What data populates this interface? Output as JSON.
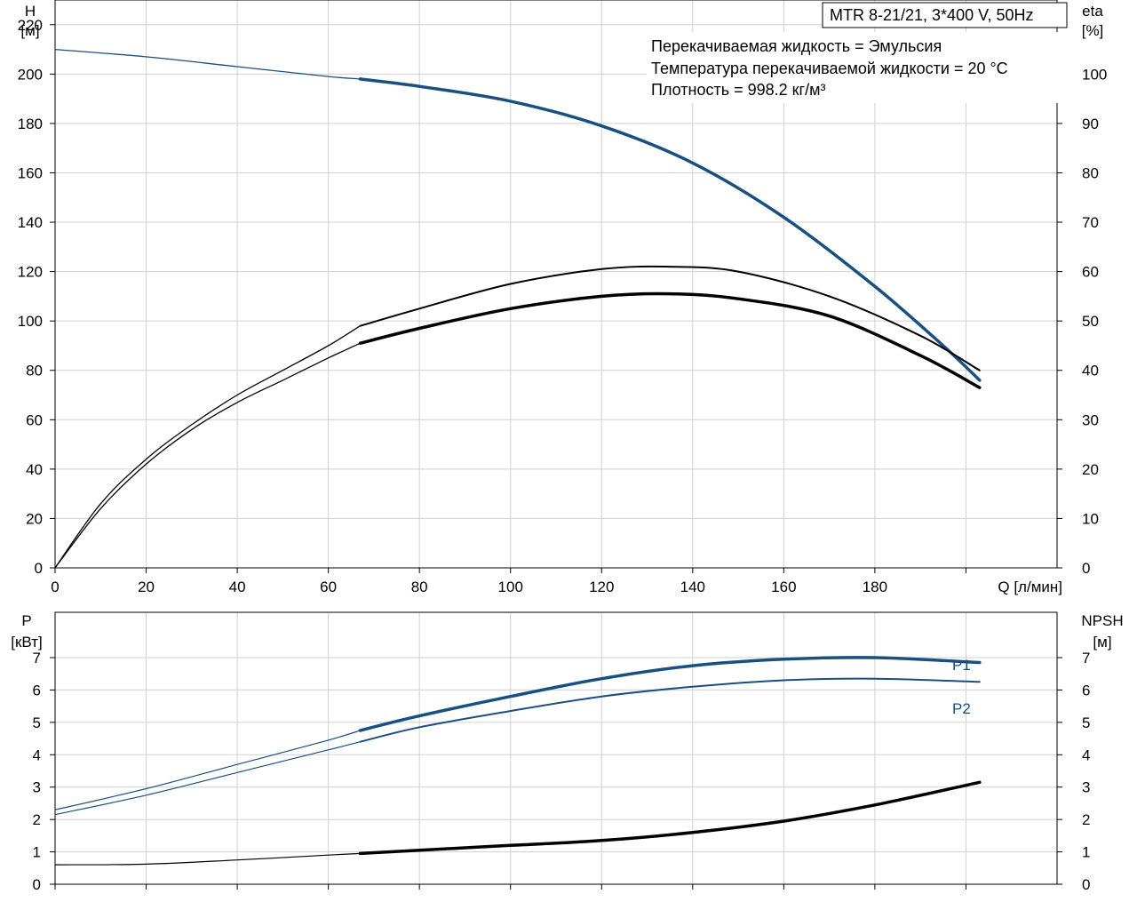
{
  "colors": {
    "head": "#1a4f82",
    "power": "#1a4f82",
    "efficiency": "#000000",
    "npsh": "#000000",
    "grid": "#d0d0d0"
  },
  "header": {
    "model": "MTR 8-21/21, 3*400 V, 50Hz",
    "liquid": "Перекачиваемая жидкость = Эмульсия",
    "temperature": "Температура перекачиваемой жидкости = 20 °C",
    "density": "Плотность = 998.2 кг/м³"
  },
  "chart_data": [
    {
      "type": "line",
      "x_axis": {
        "label": "Q [л/мин]",
        "range": [
          0,
          220
        ],
        "ticks": [
          0,
          20,
          40,
          60,
          80,
          100,
          120,
          140,
          160,
          180
        ]
      },
      "y_axis_left": {
        "label_line1": "H",
        "label_line2": "[м]",
        "range": [
          0,
          230
        ],
        "ticks": [
          0,
          20,
          40,
          60,
          80,
          100,
          120,
          140,
          160,
          180,
          200,
          220
        ]
      },
      "y_axis_right": {
        "label_line1": "eta",
        "label_line2": "[%]",
        "range": [
          0,
          115
        ],
        "ticks": [
          0,
          10,
          20,
          30,
          40,
          50,
          60,
          70,
          80,
          90,
          100
        ]
      },
      "grid": true,
      "operating_range": [
        67,
        203
      ],
      "series": [
        {
          "key": "head",
          "axis": "left",
          "x": [
            0,
            20,
            40,
            60,
            67,
            80,
            100,
            120,
            140,
            160,
            180,
            195,
            203
          ],
          "y": [
            210,
            207,
            203,
            199,
            198,
            195,
            189,
            179,
            164,
            142,
            114,
            90,
            76
          ]
        },
        {
          "key": "eta_a",
          "axis": "right",
          "x": [
            0,
            10,
            20,
            30,
            40,
            50,
            60,
            67,
            80,
            100,
            120,
            135,
            150,
            170,
            190,
            203
          ],
          "y": [
            0,
            13,
            22,
            29,
            35,
            40,
            45,
            49,
            52.5,
            57.5,
            60.5,
            61,
            60,
            55,
            47,
            40
          ]
        },
        {
          "key": "eta_b",
          "axis": "right",
          "x": [
            0,
            10,
            20,
            30,
            40,
            50,
            60,
            67,
            80,
            100,
            120,
            135,
            150,
            170,
            190,
            203
          ],
          "y": [
            0,
            12,
            21,
            28,
            33.5,
            38,
            42.5,
            45.5,
            48.5,
            52.5,
            55,
            55.5,
            54.5,
            51,
            43,
            36.5
          ]
        }
      ]
    },
    {
      "type": "line",
      "x_axis": {
        "range": [
          0,
          220
        ],
        "ticks": []
      },
      "y_axis_left": {
        "label_line1": "P",
        "label_line2": "[кВт]",
        "range": [
          0,
          8.4
        ],
        "ticks": [
          0,
          1,
          2,
          3,
          4,
          5,
          6,
          7
        ]
      },
      "y_axis_right": {
        "label_line1": "NPSH",
        "label_line2": "[м]",
        "range": [
          0,
          8.4
        ],
        "ticks": [
          0,
          1,
          2,
          3,
          4,
          5,
          6,
          7
        ]
      },
      "grid": true,
      "operating_range": [
        67,
        203
      ],
      "series": [
        {
          "key": "p1",
          "name": "P1",
          "axis": "left",
          "x": [
            0,
            20,
            40,
            60,
            67,
            80,
            100,
            120,
            140,
            160,
            180,
            203
          ],
          "y": [
            2.3,
            2.95,
            3.7,
            4.45,
            4.75,
            5.2,
            5.8,
            6.35,
            6.75,
            6.95,
            7.0,
            6.85
          ]
        },
        {
          "key": "p2",
          "name": "P2",
          "axis": "left",
          "x": [
            0,
            20,
            40,
            60,
            67,
            80,
            100,
            120,
            140,
            160,
            180,
            203
          ],
          "y": [
            2.15,
            2.75,
            3.45,
            4.15,
            4.4,
            4.85,
            5.35,
            5.8,
            6.1,
            6.3,
            6.35,
            6.25
          ]
        },
        {
          "key": "npsh",
          "axis": "right",
          "x": [
            0,
            20,
            40,
            60,
            67,
            80,
            100,
            120,
            140,
            160,
            180,
            203
          ],
          "y": [
            0.6,
            0.62,
            0.75,
            0.9,
            0.95,
            1.05,
            1.2,
            1.35,
            1.6,
            1.95,
            2.45,
            3.15
          ]
        }
      ]
    }
  ]
}
